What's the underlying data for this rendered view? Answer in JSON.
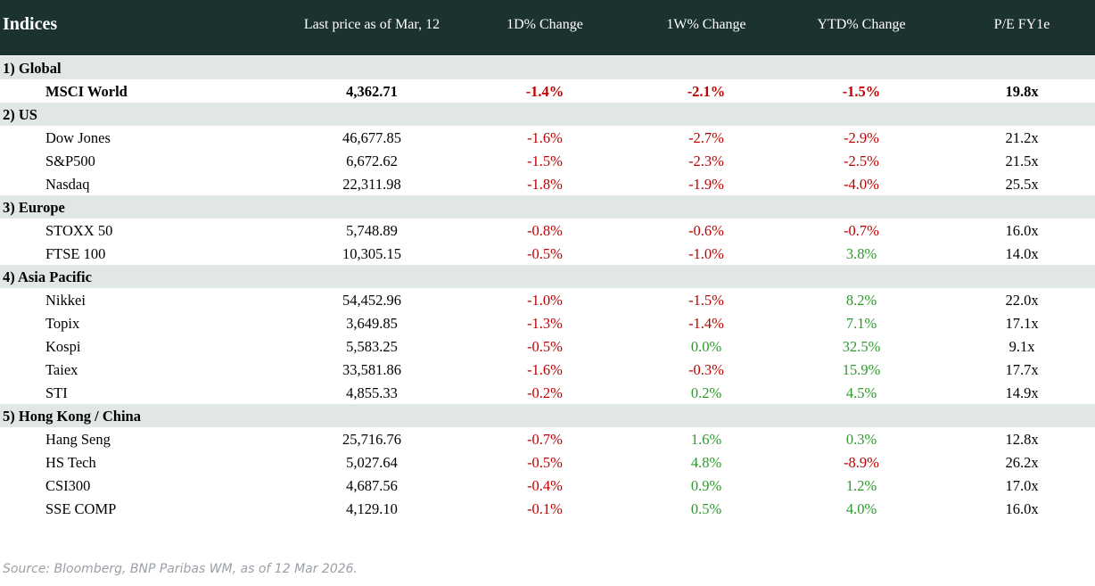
{
  "header": {
    "indices": "Indices",
    "last_price": "Last price as of Mar, 12",
    "d1": "1D% Change",
    "w1": "1W% Change",
    "ytd": "YTD% Change",
    "pe": "P/E FY1e"
  },
  "colors": {
    "header_bg": "#1b3230",
    "group_bg": "#e1e7e4",
    "negative": "#c00000",
    "positive": "#2e9a2e"
  },
  "groups": [
    {
      "label": "1) Global",
      "rows": [
        {
          "name": "MSCI World",
          "price": "4,362.71",
          "d1": "-1.4%",
          "w1": "-2.1%",
          "ytd": "-1.5%",
          "pe": "19.8x",
          "bold": true
        }
      ]
    },
    {
      "label": "2) US",
      "rows": [
        {
          "name": "Dow Jones",
          "price": "46,677.85",
          "d1": "-1.6%",
          "w1": "-2.7%",
          "ytd": "-2.9%",
          "pe": "21.2x"
        },
        {
          "name": "S&P500",
          "price": "6,672.62",
          "d1": "-1.5%",
          "w1": "-2.3%",
          "ytd": "-2.5%",
          "pe": "21.5x"
        },
        {
          "name": "Nasdaq",
          "price": "22,311.98",
          "d1": "-1.8%",
          "w1": "-1.9%",
          "ytd": "-4.0%",
          "pe": "25.5x"
        }
      ]
    },
    {
      "label": "3) Europe",
      "rows": [
        {
          "name": "STOXX 50",
          "price": "5,748.89",
          "d1": "-0.8%",
          "w1": "-0.6%",
          "ytd": "-0.7%",
          "pe": "16.0x"
        },
        {
          "name": "FTSE 100",
          "price": "10,305.15",
          "d1": "-0.5%",
          "w1": "-1.0%",
          "ytd": "3.8%",
          "pe": "14.0x"
        }
      ]
    },
    {
      "label": "4) Asia Pacific",
      "rows": [
        {
          "name": "Nikkei",
          "price": "54,452.96",
          "d1": "-1.0%",
          "w1": "-1.5%",
          "ytd": "8.2%",
          "pe": "22.0x"
        },
        {
          "name": "Topix",
          "price": "3,649.85",
          "d1": "-1.3%",
          "w1": "-1.4%",
          "ytd": "7.1%",
          "pe": "17.1x"
        },
        {
          "name": "Kospi",
          "price": "5,583.25",
          "d1": "-0.5%",
          "w1": "0.0%",
          "ytd": "32.5%",
          "pe": "9.1x"
        },
        {
          "name": "Taiex",
          "price": "33,581.86",
          "d1": "-1.6%",
          "w1": "-0.3%",
          "ytd": "15.9%",
          "pe": "17.7x"
        },
        {
          "name": "STI",
          "price": "4,855.33",
          "d1": "-0.2%",
          "w1": "0.2%",
          "ytd": "4.5%",
          "pe": "14.9x"
        }
      ]
    },
    {
      "label": "5) Hong Kong / China",
      "rows": [
        {
          "name": "Hang Seng",
          "price": "25,716.76",
          "d1": "-0.7%",
          "w1": "1.6%",
          "ytd": "0.3%",
          "pe": "12.8x"
        },
        {
          "name": "HS Tech",
          "price": "5,027.64",
          "d1": "-0.5%",
          "w1": "4.8%",
          "ytd": "-8.9%",
          "pe": "26.2x"
        },
        {
          "name": "CSI300",
          "price": "4,687.56",
          "d1": "-0.4%",
          "w1": "0.9%",
          "ytd": "1.2%",
          "pe": "17.0x"
        },
        {
          "name": "SSE COMP",
          "price": "4,129.10",
          "d1": "-0.1%",
          "w1": "0.5%",
          "ytd": "4.0%",
          "pe": "16.0x"
        }
      ]
    }
  ],
  "source": "Source: Bloomberg, BNP Paribas WM, as of 12 Mar 2026."
}
